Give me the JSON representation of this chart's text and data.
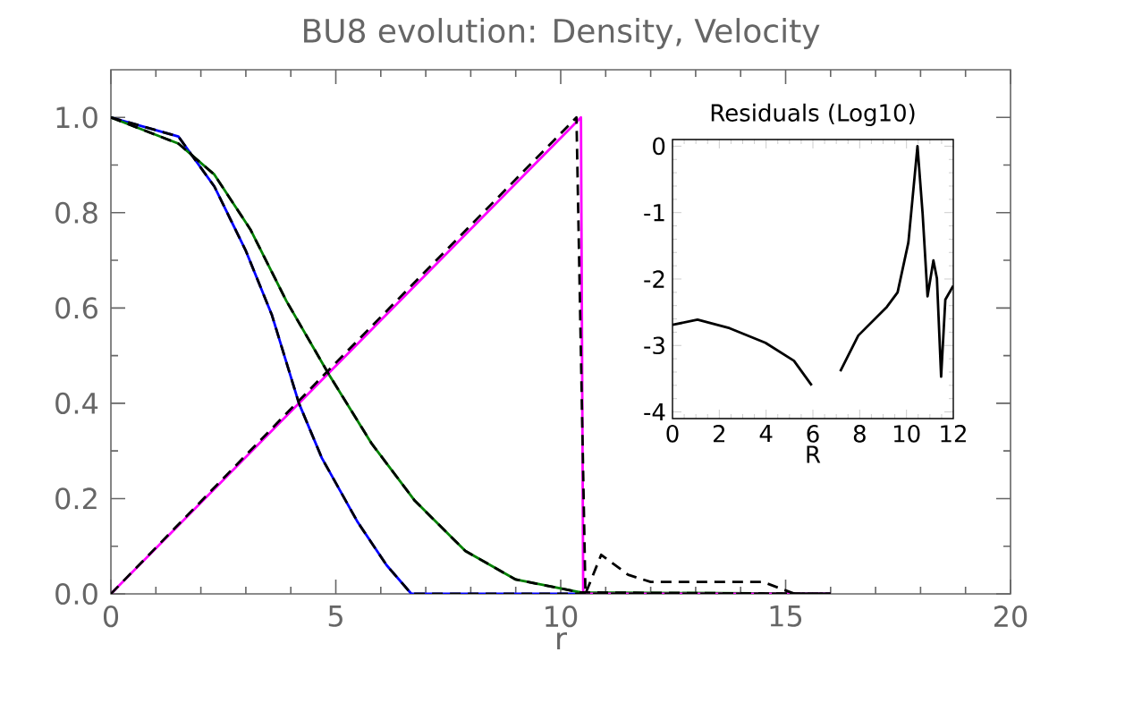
{
  "chart_data": [
    {
      "type": "line",
      "title": "BU8 evolution: Density, Velocity",
      "xlabel": "r",
      "xlim": [
        0,
        20
      ],
      "ylim": [
        0,
        1.1
      ],
      "xticks": [
        0,
        5,
        10,
        15,
        20
      ],
      "yticks": [
        {
          "value": 0,
          "label": "0.0"
        },
        {
          "value": 0.2,
          "label": "0.2"
        },
        {
          "value": 0.4,
          "label": "0.4"
        },
        {
          "value": 0.6,
          "label": "0.6"
        },
        {
          "value": 0.8,
          "label": "0.8"
        },
        {
          "value": 1.0,
          "label": "1.0"
        }
      ],
      "grid": false,
      "series": [
        {
          "color": "#0000ff",
          "line_style": "solid",
          "x": [
            0,
            1.5,
            2.3,
            3.0,
            3.58,
            4.18,
            4.69,
            5.49,
            6.13,
            6.68,
            16
          ],
          "values": [
            1.0,
            0.96,
            0.855,
            0.72,
            0.585,
            0.4,
            0.285,
            0.15,
            0.06,
            0,
            0
          ]
        },
        {
          "color": "#008000",
          "line_style": "solid",
          "x": [
            0,
            1.5,
            2.3,
            3.1,
            3.9,
            4.85,
            5.8,
            6.76,
            7.88,
            9.0,
            10.45,
            16
          ],
          "values": [
            1.0,
            0.945,
            0.88,
            0.765,
            0.615,
            0.46,
            0.315,
            0.195,
            0.09,
            0.03,
            0.003,
            0
          ]
        },
        {
          "color": "#ff00ff",
          "line_style": "solid",
          "x": [
            0,
            10.45,
            10.5,
            16
          ],
          "values": [
            0,
            1.0,
            0,
            0
          ]
        },
        {
          "color": "#000000",
          "line_style": "dashed",
          "x": [
            0,
            1.5,
            2.3,
            3.0,
            3.58,
            4.18,
            4.69,
            5.49,
            6.13,
            6.68,
            16
          ],
          "values": [
            1.0,
            0.96,
            0.855,
            0.72,
            0.585,
            0.4,
            0.285,
            0.15,
            0.06,
            0,
            0
          ]
        },
        {
          "color": "#000000",
          "line_style": "dashed",
          "x": [
            0,
            1.5,
            2.3,
            3.1,
            3.9,
            4.85,
            5.8,
            6.76,
            7.88,
            9.0,
            10.45,
            16
          ],
          "values": [
            1.0,
            0.945,
            0.88,
            0.765,
            0.615,
            0.46,
            0.315,
            0.195,
            0.09,
            0.03,
            0.003,
            0
          ]
        },
        {
          "color": "#000000",
          "line_style": "dashed",
          "x": [
            0,
            5.0,
            10.35,
            10.55,
            10.9,
            11.5,
            12.0,
            14.5,
            15.2,
            16
          ],
          "values": [
            0,
            0.485,
            1.0,
            0,
            0.082,
            0.04,
            0.025,
            0.025,
            0,
            0
          ]
        }
      ]
    },
    {
      "type": "line",
      "title": "Residuals (Log10)",
      "xlabel": "R",
      "xlim": [
        0,
        12
      ],
      "ylim": [
        -4.1,
        0.1
      ],
      "xticks": [
        0,
        2,
        4,
        6,
        8,
        10,
        12
      ],
      "yticks": [
        -4,
        -3,
        -2,
        -1,
        0
      ],
      "grid": false,
      "series": [
        {
          "color": "#000000",
          "line_style": "solid",
          "x": [
            0,
            1.07,
            2.44,
            3.97,
            5.19,
            5.95,
            6.4,
            6.6,
            6.87,
            7.17,
            7.94,
            9.16,
            9.62,
            10.08,
            10.47,
            10.69,
            10.9,
            11.15,
            11.3,
            11.48,
            11.66,
            12
          ],
          "values": [
            -2.69,
            -2.61,
            -2.74,
            -2.96,
            -3.23,
            -3.6,
            null,
            null,
            null,
            -3.39,
            -2.85,
            -2.42,
            -2.2,
            -1.45,
            0.0,
            -1.02,
            -2.26,
            -1.72,
            -1.99,
            -3.47,
            -2.31,
            -2.1
          ]
        }
      ]
    }
  ]
}
